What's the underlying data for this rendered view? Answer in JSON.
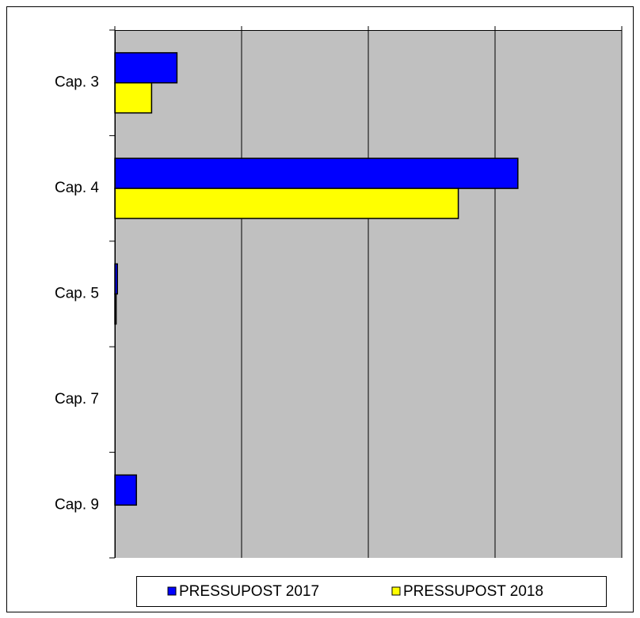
{
  "chart_data": {
    "type": "hbar",
    "categories": [
      "Cap. 3",
      "Cap. 4",
      "Cap. 5",
      "Cap. 7",
      "Cap. 9"
    ],
    "series": [
      {
        "name": "PRESSUPOST 2017",
        "color": "#0000ff",
        "values": [
          0.49,
          3.18,
          0.02,
          0,
          0.17
        ]
      },
      {
        "name": "PRESSUPOST 2018",
        "color": "#ffff00",
        "values": [
          0.29,
          2.71,
          0.01,
          0,
          0
        ]
      }
    ],
    "xlim": [
      0,
      4
    ],
    "xticks": [
      0,
      1,
      2,
      3,
      4
    ],
    "grid": true,
    "legend": "bottom"
  }
}
